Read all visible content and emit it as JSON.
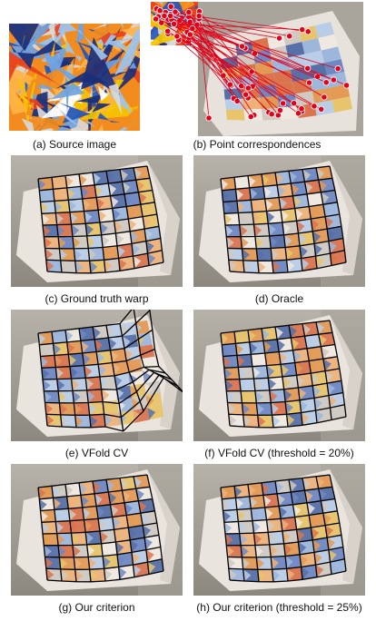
{
  "figure": {
    "captions": [
      "(a) Source image",
      "(b) Point correspondences",
      "(c) Ground truth warp",
      "(d) Oracle",
      "(e) VFold CV",
      "(f) VFold CV (threshold = 20%)",
      "(g) Our criterion",
      "(h) Our criterion (threshold = 25%)"
    ]
  },
  "colors": {
    "background_photo": "#9d9a93",
    "paper": "#e9e4de",
    "correspondence_marker": "#e2001a",
    "warp_grid": "#000000"
  }
}
